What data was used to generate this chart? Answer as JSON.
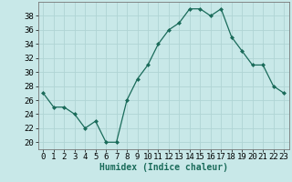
{
  "x": [
    0,
    1,
    2,
    3,
    4,
    5,
    6,
    7,
    8,
    9,
    10,
    11,
    12,
    13,
    14,
    15,
    16,
    17,
    18,
    19,
    20,
    21,
    22,
    23
  ],
  "y": [
    27,
    25,
    25,
    24,
    22,
    23,
    20,
    20,
    26,
    29,
    31,
    34,
    36,
    37,
    39,
    39,
    38,
    39,
    35,
    33,
    31,
    31,
    28,
    27
  ],
  "line_color": "#1a6b5a",
  "marker": "D",
  "marker_size": 2,
  "bg_color": "#c8e8e8",
  "grid_color": "#b0d4d4",
  "xlabel": "Humidex (Indice chaleur)",
  "xlim": [
    -0.5,
    23.5
  ],
  "ylim": [
    19,
    40
  ],
  "yticks": [
    20,
    22,
    24,
    26,
    28,
    30,
    32,
    34,
    36,
    38
  ],
  "xtick_labels": [
    "0",
    "1",
    "2",
    "3",
    "4",
    "5",
    "6",
    "7",
    "8",
    "9",
    "10",
    "11",
    "12",
    "13",
    "14",
    "15",
    "16",
    "17",
    "18",
    "19",
    "20",
    "21",
    "22",
    "23"
  ],
  "xlabel_fontsize": 7,
  "tick_fontsize": 6.5
}
